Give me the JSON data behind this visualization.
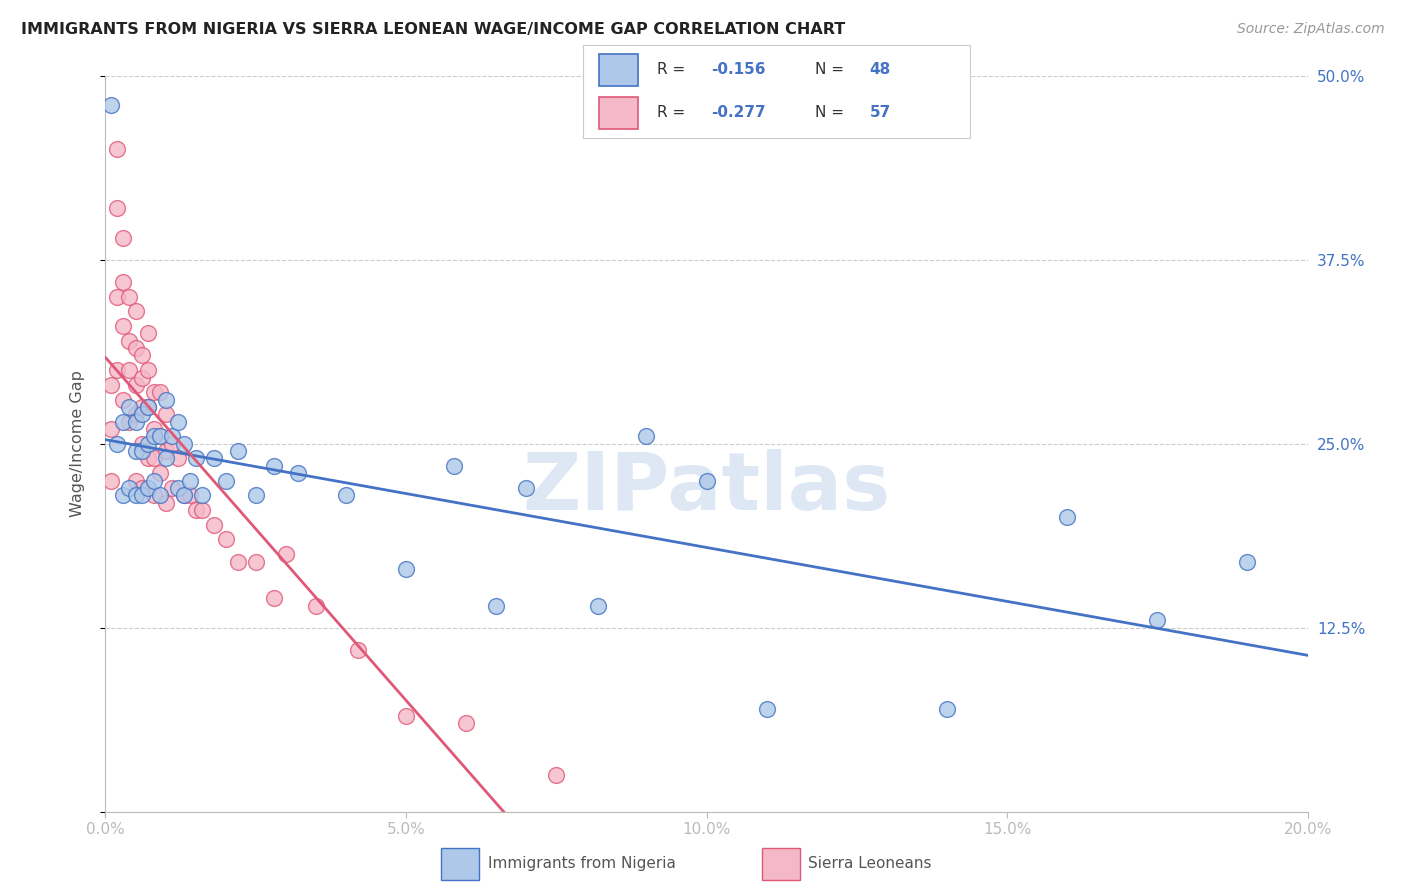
{
  "title": "IMMIGRANTS FROM NIGERIA VS SIERRA LEONEAN WAGE/INCOME GAP CORRELATION CHART",
  "source": "Source: ZipAtlas.com",
  "ylabel": "Wage/Income Gap",
  "legend_label1": "Immigrants from Nigeria",
  "legend_label2": "Sierra Leoneans",
  "R1": -0.156,
  "N1": 48,
  "R2": -0.277,
  "N2": 57,
  "color_blue": "#adc8e8",
  "color_pink": "#f5b8c8",
  "color_blue_line": "#4472c4",
  "color_pink_line": "#e05878",
  "xlim": [
    0.0,
    0.2
  ],
  "ylim": [
    0.0,
    0.5
  ],
  "xticks": [
    0.0,
    0.05,
    0.1,
    0.15,
    0.2
  ],
  "xticklabels": [
    "0.0%",
    "5.0%",
    "10.0%",
    "15.0%",
    "20.0%"
  ],
  "yticks": [
    0.0,
    0.125,
    0.25,
    0.375,
    0.5
  ],
  "yticklabels_right": [
    "",
    "12.5%",
    "25.0%",
    "37.5%",
    "50.0%"
  ],
  "watermark": "ZIPatlas",
  "background_color": "#ffffff",
  "nigeria_x": [
    0.001,
    0.002,
    0.003,
    0.003,
    0.004,
    0.004,
    0.005,
    0.005,
    0.005,
    0.006,
    0.006,
    0.006,
    0.007,
    0.007,
    0.007,
    0.008,
    0.008,
    0.009,
    0.009,
    0.01,
    0.01,
    0.011,
    0.012,
    0.012,
    0.013,
    0.013,
    0.014,
    0.015,
    0.016,
    0.018,
    0.02,
    0.022,
    0.025,
    0.028,
    0.032,
    0.04,
    0.05,
    0.058,
    0.065,
    0.07,
    0.082,
    0.09,
    0.1,
    0.11,
    0.14,
    0.16,
    0.175,
    0.19
  ],
  "nigeria_y": [
    0.48,
    0.25,
    0.265,
    0.215,
    0.275,
    0.22,
    0.265,
    0.245,
    0.215,
    0.27,
    0.245,
    0.215,
    0.275,
    0.25,
    0.22,
    0.255,
    0.225,
    0.255,
    0.215,
    0.28,
    0.24,
    0.255,
    0.265,
    0.22,
    0.25,
    0.215,
    0.225,
    0.24,
    0.215,
    0.24,
    0.225,
    0.245,
    0.215,
    0.235,
    0.23,
    0.215,
    0.165,
    0.235,
    0.14,
    0.22,
    0.14,
    0.255,
    0.225,
    0.07,
    0.07,
    0.2,
    0.13,
    0.17
  ],
  "sierra_x": [
    0.001,
    0.001,
    0.001,
    0.002,
    0.002,
    0.002,
    0.002,
    0.003,
    0.003,
    0.003,
    0.003,
    0.004,
    0.004,
    0.004,
    0.004,
    0.005,
    0.005,
    0.005,
    0.005,
    0.005,
    0.006,
    0.006,
    0.006,
    0.006,
    0.006,
    0.007,
    0.007,
    0.007,
    0.007,
    0.008,
    0.008,
    0.008,
    0.008,
    0.009,
    0.009,
    0.009,
    0.01,
    0.01,
    0.01,
    0.011,
    0.011,
    0.012,
    0.013,
    0.014,
    0.015,
    0.016,
    0.018,
    0.02,
    0.022,
    0.025,
    0.028,
    0.03,
    0.035,
    0.042,
    0.05,
    0.06,
    0.075
  ],
  "sierra_y": [
    0.29,
    0.26,
    0.225,
    0.45,
    0.41,
    0.35,
    0.3,
    0.39,
    0.36,
    0.33,
    0.28,
    0.35,
    0.32,
    0.3,
    0.265,
    0.34,
    0.315,
    0.29,
    0.27,
    0.225,
    0.31,
    0.295,
    0.275,
    0.25,
    0.22,
    0.325,
    0.3,
    0.275,
    0.24,
    0.285,
    0.26,
    0.24,
    0.215,
    0.285,
    0.255,
    0.23,
    0.27,
    0.245,
    0.21,
    0.25,
    0.22,
    0.24,
    0.215,
    0.215,
    0.205,
    0.205,
    0.195,
    0.185,
    0.17,
    0.17,
    0.145,
    0.175,
    0.14,
    0.11,
    0.065,
    0.06,
    0.025
  ]
}
